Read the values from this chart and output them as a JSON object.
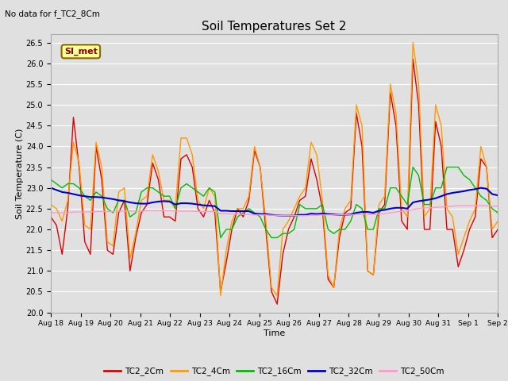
{
  "title": "Soil Temperatures Set 2",
  "subtitle": "No data for f_TC2_8Cm",
  "xlabel": "Time",
  "ylabel": "Soil Temperature (C)",
  "ylim": [
    20.0,
    26.7
  ],
  "yticks": [
    20.0,
    20.5,
    21.0,
    21.5,
    22.0,
    22.5,
    23.0,
    23.5,
    24.0,
    24.5,
    25.0,
    25.5,
    26.0,
    26.5
  ],
  "background_color": "#e0e0e0",
  "plot_bg_color": "#e0e0e0",
  "grid_color": "#ffffff",
  "series": {
    "TC2_2Cm": {
      "color": "#dd0000",
      "lw": 1.0
    },
    "TC2_4Cm": {
      "color": "#ff9900",
      "lw": 1.0
    },
    "TC2_16Cm": {
      "color": "#00bb00",
      "lw": 1.0
    },
    "TC2_32Cm": {
      "color": "#0000cc",
      "lw": 1.5
    },
    "TC2_50Cm": {
      "color": "#ff99cc",
      "lw": 1.0
    }
  },
  "legend_box_color": "#ffff99",
  "legend_box_border": "#886600",
  "legend_text": "SI_met",
  "xtick_labels": [
    "Aug 18",
    "Aug 19",
    "Aug 20",
    "Aug 21",
    "Aug 22",
    "Aug 23",
    "Aug 24",
    "Aug 25",
    "Aug 26",
    "Aug 27",
    "Aug 28",
    "Aug 29",
    "Aug 30",
    "Aug 31",
    "Sep 1",
    "Sep 2"
  ],
  "TC2_2Cm_y": [
    22.3,
    22.1,
    21.4,
    22.5,
    24.7,
    23.5,
    21.7,
    21.4,
    24.0,
    23.2,
    21.5,
    21.4,
    22.4,
    22.7,
    21.0,
    21.8,
    22.4,
    22.6,
    23.6,
    23.2,
    22.3,
    22.3,
    22.2,
    23.7,
    23.8,
    23.5,
    22.5,
    22.3,
    22.7,
    22.4,
    20.5,
    21.2,
    22.0,
    22.5,
    22.3,
    22.7,
    23.9,
    23.5,
    22.0,
    20.5,
    20.2,
    21.4,
    22.0,
    22.3,
    22.7,
    22.8,
    23.7,
    23.2,
    22.5,
    20.8,
    20.6,
    21.8,
    22.4,
    22.5,
    24.8,
    24.0,
    21.0,
    20.9,
    22.4,
    22.6,
    25.3,
    24.5,
    22.2,
    22.0,
    26.1,
    25.0,
    22.0,
    22.0,
    24.6,
    24.0,
    22.0,
    22.0,
    21.1,
    21.5,
    22.0,
    22.3,
    23.7,
    23.5,
    21.8,
    22.0
  ],
  "TC2_4Cm_y": [
    22.6,
    22.5,
    22.2,
    22.7,
    24.1,
    23.6,
    22.1,
    22.0,
    24.1,
    23.5,
    21.7,
    21.6,
    22.9,
    23.0,
    21.3,
    21.9,
    22.7,
    22.8,
    23.8,
    23.4,
    22.7,
    22.7,
    22.5,
    24.2,
    24.2,
    23.8,
    22.7,
    22.5,
    23.0,
    22.8,
    20.4,
    21.5,
    22.2,
    22.5,
    22.5,
    22.8,
    24.0,
    23.5,
    22.2,
    20.6,
    20.4,
    22.0,
    22.2,
    22.5,
    22.8,
    23.0,
    24.1,
    23.8,
    22.7,
    20.9,
    20.6,
    22.0,
    22.5,
    22.7,
    25.0,
    24.5,
    21.0,
    20.9,
    22.6,
    22.8,
    25.5,
    24.8,
    22.5,
    22.3,
    26.5,
    25.5,
    22.3,
    22.5,
    25.0,
    24.5,
    22.5,
    22.3,
    21.4,
    21.8,
    22.2,
    22.5,
    24.0,
    23.5,
    22.0,
    22.2
  ],
  "TC2_16Cm_y": [
    23.2,
    23.1,
    23.0,
    23.1,
    23.1,
    23.0,
    22.8,
    22.7,
    22.9,
    22.8,
    22.5,
    22.4,
    22.7,
    22.7,
    22.3,
    22.4,
    22.9,
    23.0,
    23.0,
    22.9,
    22.8,
    22.8,
    22.5,
    23.0,
    23.1,
    23.0,
    22.9,
    22.8,
    23.0,
    22.9,
    21.8,
    22.0,
    22.0,
    22.3,
    22.4,
    22.5,
    22.4,
    22.3,
    22.0,
    21.8,
    21.8,
    21.9,
    21.9,
    22.0,
    22.6,
    22.5,
    22.5,
    22.5,
    22.6,
    22.0,
    21.9,
    22.0,
    22.0,
    22.2,
    22.6,
    22.5,
    22.0,
    22.0,
    22.5,
    22.5,
    23.0,
    23.0,
    22.8,
    22.6,
    23.5,
    23.3,
    22.6,
    22.6,
    23.0,
    23.0,
    23.5,
    23.5,
    23.5,
    23.3,
    23.2,
    23.0,
    22.8,
    22.7,
    22.5,
    22.4
  ],
  "TC2_32Cm_y": [
    23.0,
    22.95,
    22.9,
    22.88,
    22.85,
    22.82,
    22.8,
    22.78,
    22.78,
    22.77,
    22.75,
    22.73,
    22.7,
    22.68,
    22.65,
    22.63,
    22.62,
    22.62,
    22.65,
    22.67,
    22.68,
    22.67,
    22.6,
    22.63,
    22.63,
    22.62,
    22.6,
    22.58,
    22.57,
    22.56,
    22.45,
    22.45,
    22.44,
    22.44,
    22.44,
    22.44,
    22.38,
    22.37,
    22.37,
    22.35,
    22.34,
    22.33,
    22.33,
    22.33,
    22.35,
    22.35,
    22.38,
    22.37,
    22.38,
    22.37,
    22.36,
    22.35,
    22.35,
    22.36,
    22.4,
    22.42,
    22.42,
    22.4,
    22.45,
    22.47,
    22.5,
    22.52,
    22.52,
    22.5,
    22.65,
    22.68,
    22.7,
    22.72,
    22.75,
    22.8,
    22.85,
    22.88,
    22.9,
    22.92,
    22.95,
    22.97,
    23.0,
    22.98,
    22.85,
    22.82
  ],
  "TC2_50Cm_y": [
    22.4,
    22.4,
    22.4,
    22.4,
    22.42,
    22.42,
    22.42,
    22.42,
    22.43,
    22.43,
    22.43,
    22.43,
    22.44,
    22.44,
    22.44,
    22.44,
    22.44,
    22.45,
    22.45,
    22.45,
    22.45,
    22.45,
    22.44,
    22.44,
    22.44,
    22.44,
    22.43,
    22.43,
    22.43,
    22.43,
    22.38,
    22.38,
    22.37,
    22.37,
    22.36,
    22.36,
    22.35,
    22.35,
    22.35,
    22.34,
    22.34,
    22.33,
    22.33,
    22.33,
    22.33,
    22.33,
    22.34,
    22.34,
    22.35,
    22.35,
    22.35,
    22.35,
    22.35,
    22.35,
    22.36,
    22.36,
    22.36,
    22.36,
    22.37,
    22.38,
    22.4,
    22.42,
    22.44,
    22.45,
    22.48,
    22.5,
    22.52,
    22.52,
    22.53,
    22.54,
    22.55,
    22.56,
    22.57,
    22.57,
    22.57,
    22.57,
    22.57,
    22.57,
    22.56,
    22.56
  ]
}
